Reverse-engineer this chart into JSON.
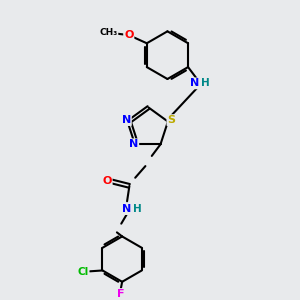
{
  "background_color": "#e8eaec",
  "bond_color": "#000000",
  "atom_colors": {
    "N": "#0000ff",
    "O": "#ff0000",
    "S": "#bbaa00",
    "Cl": "#00bb00",
    "F": "#ee00ee",
    "H": "#008888",
    "C": "#000000"
  },
  "figsize": [
    3.0,
    3.0
  ],
  "dpi": 100,
  "xlim": [
    0,
    10
  ],
  "ylim": [
    0,
    10
  ]
}
